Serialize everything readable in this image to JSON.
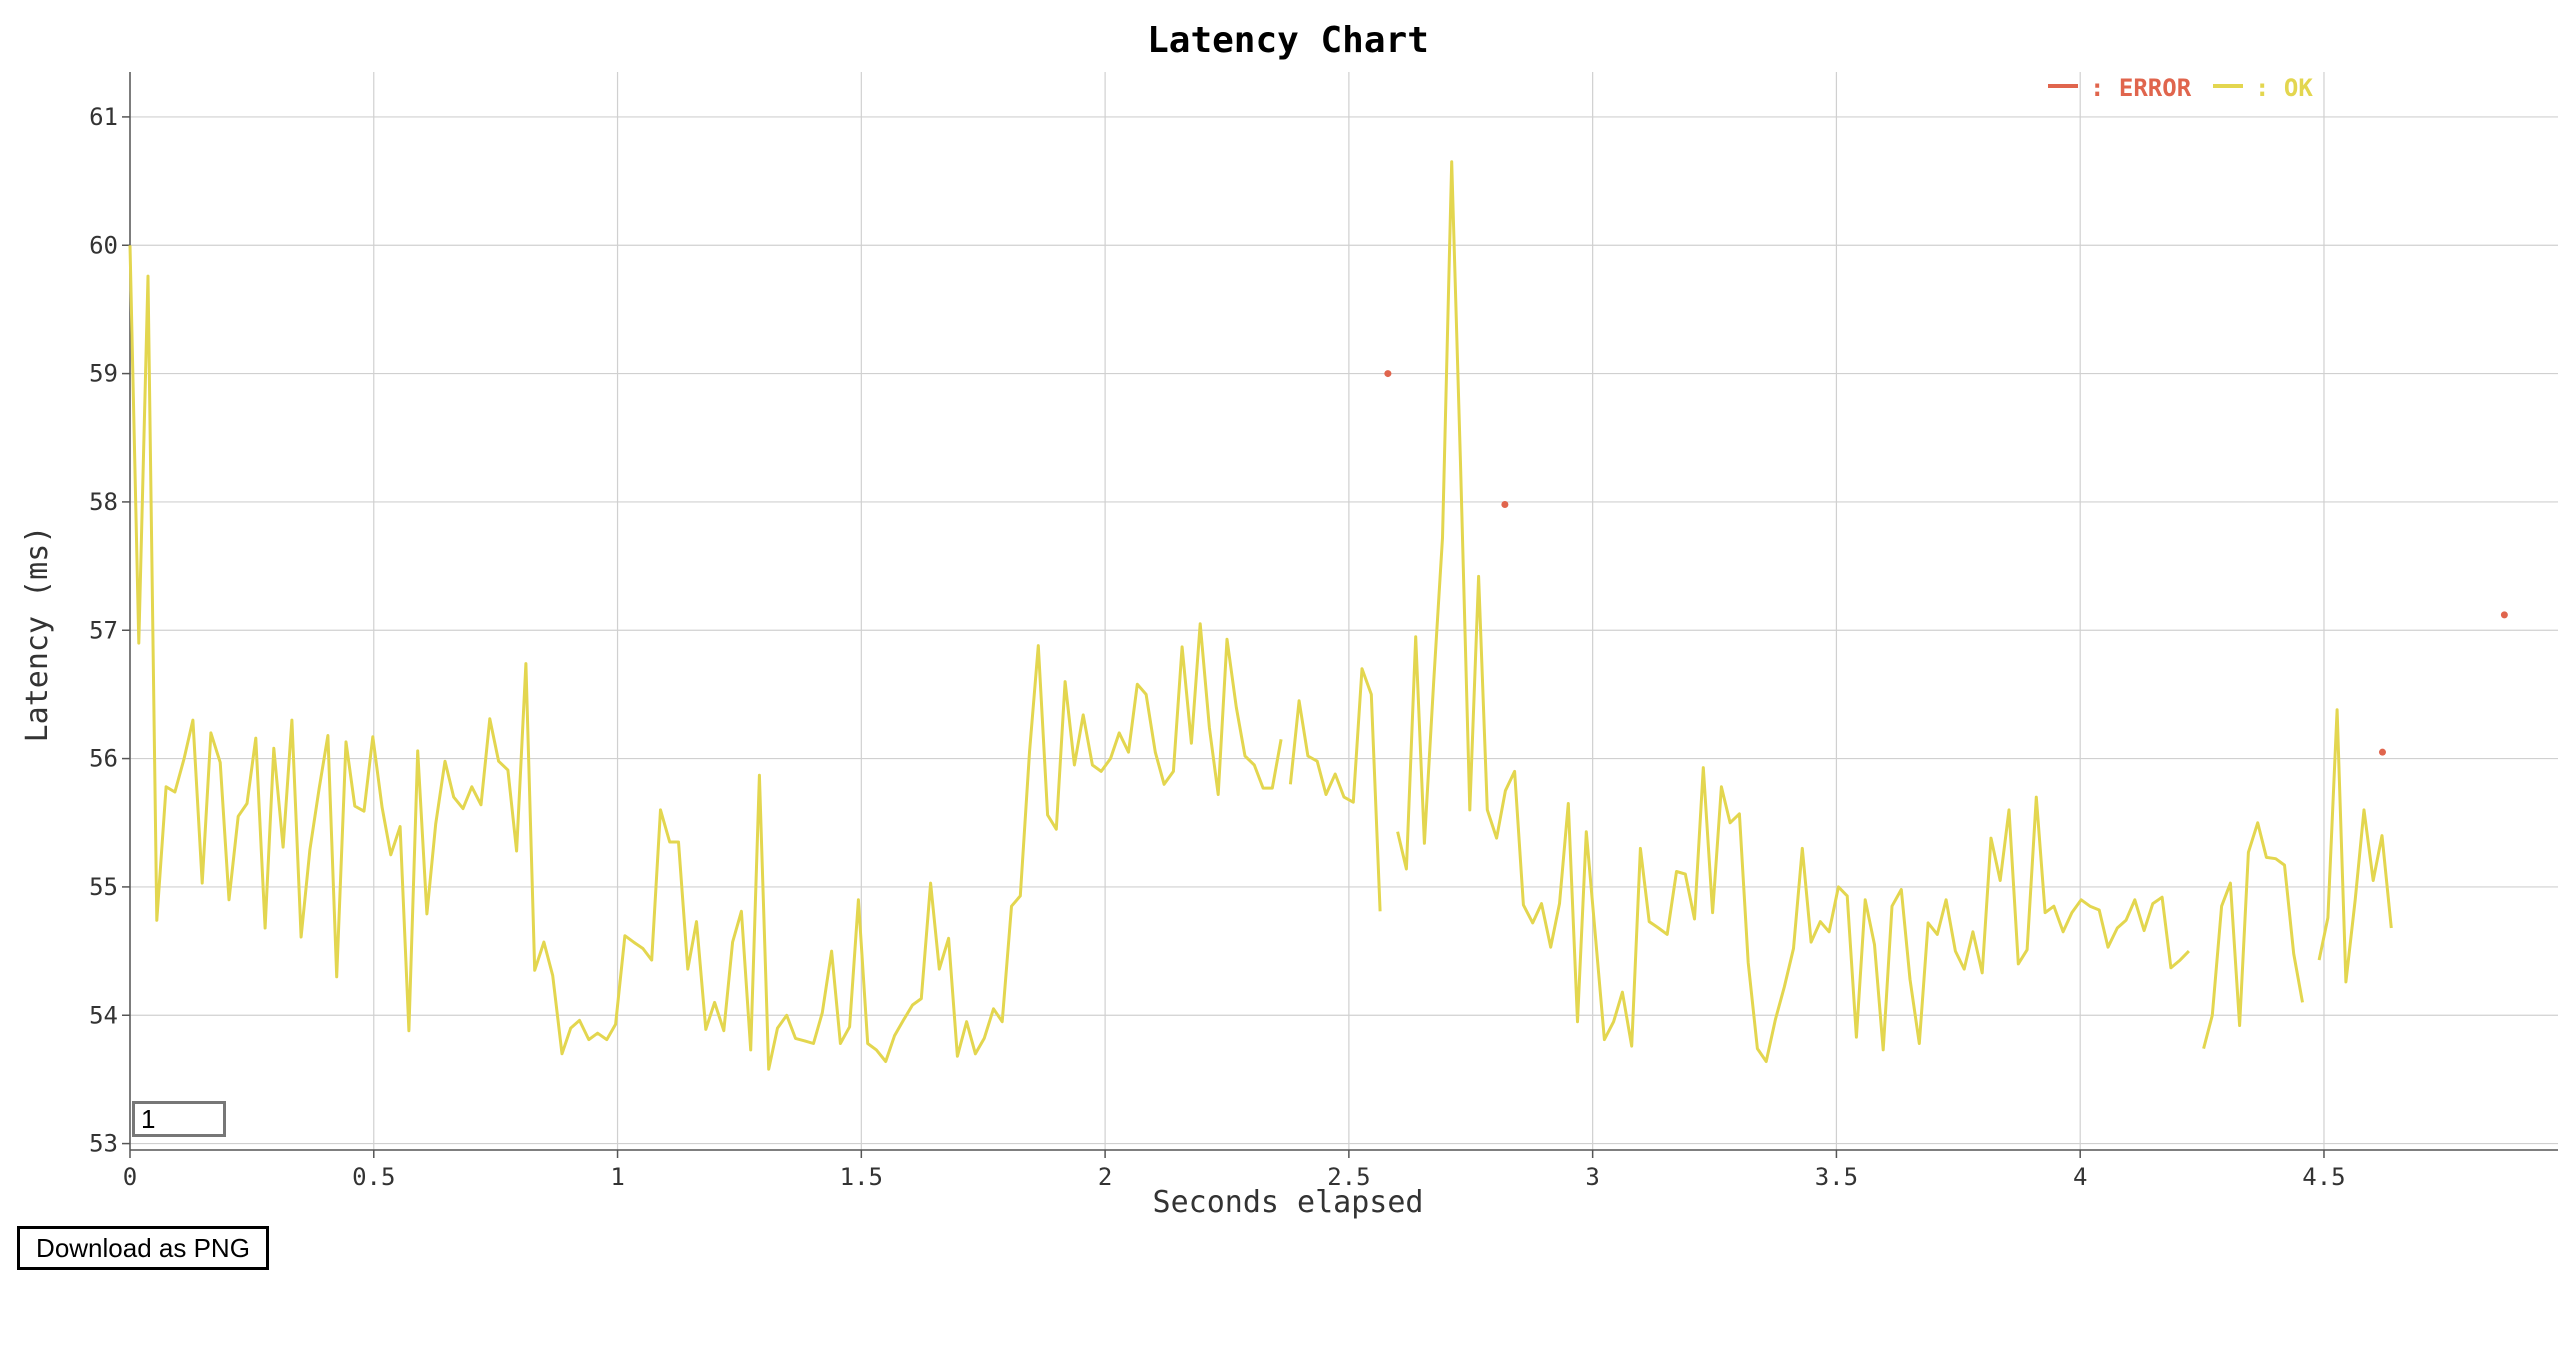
{
  "download_label": "Download as PNG",
  "zoom_value": "1",
  "chart_data": {
    "type": "line",
    "title": "Latency Chart",
    "xlabel": "Seconds elapsed",
    "ylabel": "Latency (ms)",
    "xlim": [
      0,
      4.98
    ],
    "ylim": [
      52.95,
      61.35
    ],
    "xticks": [
      0,
      0.5,
      1,
      1.5,
      2,
      2.5,
      3,
      3.5,
      4,
      4.5
    ],
    "yticks": [
      53,
      54,
      55,
      56,
      57,
      58,
      59,
      60,
      61
    ],
    "grid": true,
    "legend_position": "top-right",
    "series": [
      {
        "name": "ERROR",
        "color": "#e0654d",
        "style": "points",
        "points": [
          [
            2.58,
            59.0
          ],
          [
            2.82,
            57.98
          ],
          [
            4.62,
            56.05
          ],
          [
            4.87,
            57.12
          ]
        ]
      },
      {
        "name": "OK",
        "color": "#e3d64f",
        "style": "line",
        "segments": [
          [
            [
              0.0,
              60.0
            ],
            [
              0.018,
              56.9
            ],
            [
              0.037,
              59.76
            ],
            [
              0.055,
              54.74
            ],
            [
              0.074,
              55.78
            ],
            [
              0.092,
              55.74
            ],
            [
              0.111,
              56.0
            ],
            [
              0.129,
              56.3
            ],
            [
              0.148,
              55.03
            ],
            [
              0.166,
              56.2
            ],
            [
              0.185,
              55.97
            ],
            [
              0.203,
              54.9
            ],
            [
              0.222,
              55.55
            ],
            [
              0.24,
              55.65
            ],
            [
              0.258,
              56.16
            ],
            [
              0.277,
              54.68
            ],
            [
              0.295,
              56.08
            ],
            [
              0.314,
              55.31
            ],
            [
              0.332,
              56.3
            ],
            [
              0.351,
              54.61
            ],
            [
              0.369,
              55.29
            ],
            [
              0.388,
              55.77
            ],
            [
              0.406,
              56.18
            ],
            [
              0.424,
              54.3
            ],
            [
              0.443,
              56.13
            ],
            [
              0.461,
              55.63
            ],
            [
              0.48,
              55.59
            ],
            [
              0.498,
              56.17
            ],
            [
              0.517,
              55.62
            ],
            [
              0.535,
              55.25
            ],
            [
              0.554,
              55.47
            ],
            [
              0.572,
              53.88
            ],
            [
              0.59,
              56.06
            ],
            [
              0.609,
              54.79
            ],
            [
              0.627,
              55.49
            ],
            [
              0.646,
              55.98
            ],
            [
              0.664,
              55.7
            ],
            [
              0.683,
              55.61
            ],
            [
              0.701,
              55.78
            ],
            [
              0.72,
              55.64
            ],
            [
              0.738,
              56.31
            ],
            [
              0.756,
              55.98
            ],
            [
              0.775,
              55.91
            ],
            [
              0.793,
              55.28
            ],
            [
              0.812,
              56.74
            ],
            [
              0.83,
              54.35
            ],
            [
              0.849,
              54.57
            ],
            [
              0.867,
              54.31
            ],
            [
              0.886,
              53.7
            ],
            [
              0.904,
              53.9
            ],
            [
              0.922,
              53.96
            ],
            [
              0.941,
              53.81
            ],
            [
              0.959,
              53.86
            ],
            [
              0.978,
              53.81
            ],
            [
              0.996,
              53.93
            ],
            [
              1.015,
              54.62
            ],
            [
              1.033,
              54.57
            ],
            [
              1.052,
              54.52
            ],
            [
              1.07,
              54.43
            ],
            [
              1.088,
              55.6
            ],
            [
              1.107,
              55.35
            ],
            [
              1.125,
              55.35
            ],
            [
              1.144,
              54.36
            ],
            [
              1.162,
              54.73
            ],
            [
              1.181,
              53.89
            ],
            [
              1.199,
              54.1
            ],
            [
              1.218,
              53.88
            ],
            [
              1.236,
              54.57
            ],
            [
              1.254,
              54.81
            ],
            [
              1.273,
              53.73
            ],
            [
              1.291,
              55.87
            ],
            [
              1.31,
              53.58
            ],
            [
              1.328,
              53.9
            ],
            [
              1.347,
              54.0
            ],
            [
              1.365,
              53.82
            ],
            [
              1.384,
              53.8
            ],
            [
              1.402,
              53.78
            ],
            [
              1.42,
              54.02
            ],
            [
              1.439,
              54.5
            ],
            [
              1.457,
              53.78
            ],
            [
              1.476,
              53.91
            ],
            [
              1.494,
              54.9
            ],
            [
              1.513,
              53.78
            ],
            [
              1.531,
              53.73
            ],
            [
              1.55,
              53.64
            ],
            [
              1.568,
              53.84
            ],
            [
              1.586,
              53.96
            ],
            [
              1.605,
              54.08
            ],
            [
              1.623,
              54.13
            ],
            [
              1.642,
              55.03
            ],
            [
              1.66,
              54.36
            ],
            [
              1.679,
              54.6
            ],
            [
              1.697,
              53.68
            ],
            [
              1.716,
              53.95
            ],
            [
              1.734,
              53.7
            ],
            [
              1.752,
              53.82
            ],
            [
              1.771,
              54.05
            ],
            [
              1.789,
              53.95
            ],
            [
              1.808,
              54.85
            ],
            [
              1.826,
              54.93
            ],
            [
              1.845,
              56.05
            ],
            [
              1.863,
              56.88
            ],
            [
              1.882,
              55.56
            ],
            [
              1.9,
              55.45
            ],
            [
              1.918,
              56.6
            ],
            [
              1.937,
              55.95
            ],
            [
              1.955,
              56.34
            ],
            [
              1.974,
              55.95
            ],
            [
              1.992,
              55.9
            ],
            [
              2.011,
              56.0
            ],
            [
              2.029,
              56.2
            ],
            [
              2.048,
              56.05
            ],
            [
              2.066,
              56.58
            ],
            [
              2.084,
              56.5
            ],
            [
              2.103,
              56.05
            ],
            [
              2.121,
              55.8
            ],
            [
              2.14,
              55.9
            ],
            [
              2.158,
              56.87
            ],
            [
              2.177,
              56.12
            ],
            [
              2.195,
              57.05
            ],
            [
              2.214,
              56.24
            ],
            [
              2.232,
              55.72
            ],
            [
              2.25,
              56.93
            ],
            [
              2.269,
              56.4
            ],
            [
              2.287,
              56.02
            ],
            [
              2.306,
              55.95
            ],
            [
              2.324,
              55.77
            ],
            [
              2.343,
              55.77
            ],
            [
              2.361,
              56.15
            ]
          ],
          [
            [
              2.38,
              55.8
            ],
            [
              2.398,
              56.45
            ],
            [
              2.416,
              56.02
            ],
            [
              2.435,
              55.98
            ],
            [
              2.453,
              55.72
            ],
            [
              2.472,
              55.88
            ],
            [
              2.49,
              55.7
            ],
            [
              2.509,
              55.66
            ],
            [
              2.527,
              56.7
            ],
            [
              2.546,
              56.5
            ],
            [
              2.564,
              54.81
            ]
          ],
          [
            [
              2.6,
              55.43
            ],
            [
              2.618,
              55.14
            ],
            [
              2.637,
              56.95
            ],
            [
              2.655,
              55.34
            ],
            [
              2.674,
              56.6
            ],
            [
              2.692,
              57.72
            ],
            [
              2.711,
              60.65
            ],
            [
              2.729,
              58.3
            ],
            [
              2.748,
              55.6
            ],
            [
              2.766,
              57.42
            ],
            [
              2.784,
              55.6
            ],
            [
              2.803,
              55.38
            ],
            [
              2.821,
              55.75
            ],
            [
              2.84,
              55.9
            ],
            [
              2.858,
              54.86
            ],
            [
              2.877,
              54.72
            ],
            [
              2.895,
              54.87
            ],
            [
              2.914,
              54.53
            ],
            [
              2.932,
              54.87
            ],
            [
              2.95,
              55.65
            ],
            [
              2.969,
              53.95
            ],
            [
              2.987,
              55.43
            ],
            [
              3.006,
              54.6
            ],
            [
              3.024,
              53.81
            ],
            [
              3.043,
              53.95
            ],
            [
              3.061,
              54.18
            ],
            [
              3.08,
              53.76
            ],
            [
              3.098,
              55.3
            ],
            [
              3.116,
              54.73
            ],
            [
              3.135,
              54.68
            ],
            [
              3.153,
              54.63
            ],
            [
              3.172,
              55.12
            ],
            [
              3.19,
              55.1
            ],
            [
              3.209,
              54.75
            ],
            [
              3.227,
              55.93
            ],
            [
              3.246,
              54.8
            ],
            [
              3.264,
              55.78
            ],
            [
              3.282,
              55.5
            ],
            [
              3.301,
              55.57
            ],
            [
              3.319,
              54.41
            ],
            [
              3.338,
              53.74
            ],
            [
              3.356,
              53.64
            ],
            [
              3.375,
              53.97
            ],
            [
              3.393,
              54.22
            ],
            [
              3.412,
              54.52
            ],
            [
              3.43,
              55.3
            ],
            [
              3.448,
              54.57
            ],
            [
              3.467,
              54.73
            ],
            [
              3.485,
              54.65
            ],
            [
              3.504,
              55.0
            ],
            [
              3.522,
              54.93
            ],
            [
              3.541,
              53.83
            ],
            [
              3.559,
              54.9
            ],
            [
              3.578,
              54.55
            ],
            [
              3.596,
              53.73
            ],
            [
              3.614,
              54.85
            ],
            [
              3.633,
              54.98
            ],
            [
              3.651,
              54.28
            ],
            [
              3.67,
              53.78
            ],
            [
              3.688,
              54.72
            ],
            [
              3.707,
              54.63
            ],
            [
              3.725,
              54.9
            ],
            [
              3.744,
              54.5
            ],
            [
              3.762,
              54.36
            ],
            [
              3.78,
              54.65
            ],
            [
              3.799,
              54.33
            ],
            [
              3.817,
              55.38
            ],
            [
              3.836,
              55.05
            ],
            [
              3.854,
              55.6
            ],
            [
              3.873,
              54.4
            ],
            [
              3.891,
              54.51
            ],
            [
              3.91,
              55.7
            ],
            [
              3.928,
              54.8
            ],
            [
              3.946,
              54.85
            ],
            [
              3.965,
              54.65
            ],
            [
              3.983,
              54.8
            ],
            [
              4.002,
              54.9
            ],
            [
              4.02,
              54.85
            ],
            [
              4.039,
              54.82
            ],
            [
              4.057,
              54.53
            ],
            [
              4.076,
              54.68
            ],
            [
              4.094,
              54.74
            ],
            [
              4.112,
              54.9
            ],
            [
              4.131,
              54.66
            ],
            [
              4.149,
              54.87
            ],
            [
              4.168,
              54.92
            ],
            [
              4.186,
              54.37
            ],
            [
              4.205,
              54.43
            ],
            [
              4.223,
              54.5
            ]
          ],
          [
            [
              4.253,
              53.74
            ],
            [
              4.271,
              54.0
            ],
            [
              4.29,
              54.85
            ],
            [
              4.308,
              55.03
            ],
            [
              4.327,
              53.92
            ],
            [
              4.345,
              55.27
            ],
            [
              4.364,
              55.5
            ],
            [
              4.382,
              55.23
            ],
            [
              4.401,
              55.22
            ],
            [
              4.419,
              55.17
            ],
            [
              4.438,
              54.48
            ],
            [
              4.456,
              54.1
            ]
          ],
          [
            [
              4.49,
              54.43
            ],
            [
              4.508,
              54.76
            ],
            [
              4.527,
              56.38
            ],
            [
              4.545,
              54.26
            ],
            [
              4.564,
              54.9
            ],
            [
              4.582,
              55.6
            ],
            [
              4.601,
              55.05
            ],
            [
              4.619,
              55.4
            ],
            [
              4.638,
              54.68
            ]
          ]
        ]
      }
    ]
  }
}
